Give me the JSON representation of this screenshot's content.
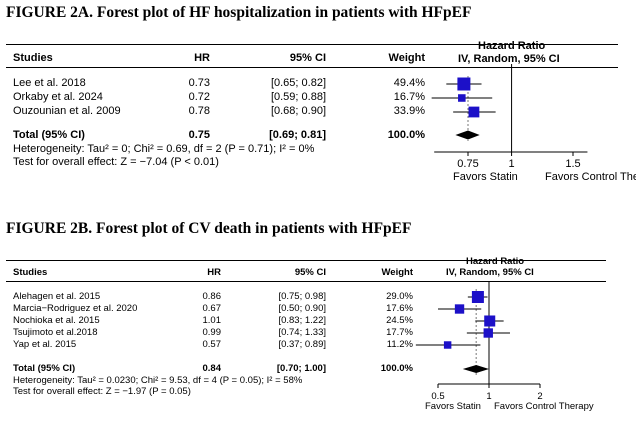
{
  "chart_data": [
    {
      "type": "forest",
      "title": "FIGURE 2A. Forest plot of  HF hospitalization in patients with HFpEF",
      "columns": {
        "studies": "Studies",
        "hr": "HR",
        "ci": "95% CI",
        "weight": "Weight"
      },
      "effect_header": [
        "Hazard Ratio",
        "IV, Random, 95% CI"
      ],
      "studies": [
        {
          "name": "Lee et al. 2018",
          "hr": "0.73",
          "ci": "[0.65; 0.82]",
          "weight": "49.4%",
          "est": 0.73,
          "lo": 0.65,
          "hi": 0.82,
          "w": 49.4
        },
        {
          "name": "Orkaby et al. 2024",
          "hr": "0.72",
          "ci": "[0.59; 0.88]",
          "weight": "16.7%",
          "est": 0.72,
          "lo": 0.59,
          "hi": 0.88,
          "w": 16.7
        },
        {
          "name": "Ouzounian et al. 2009",
          "hr": "0.78",
          "ci": "[0.68; 0.90]",
          "weight": "33.9%",
          "est": 0.78,
          "lo": 0.68,
          "hi": 0.9,
          "w": 33.9
        }
      ],
      "total": {
        "label": "Total (95% CI)",
        "hr": "0.75",
        "ci": "[0.69; 0.81]",
        "weight": "100.0%",
        "est": 0.75,
        "lo": 0.69,
        "hi": 0.81
      },
      "heterogeneity": "Heterogeneity: Tau² = 0; Chi² = 0.69, df = 2 (P = 0.71); I² = 0%",
      "overall_test": "Test for overall effect: Z = −7.04 (P < 0.01)",
      "x_ticks": [
        {
          "v": 0.75,
          "label": "0.75"
        },
        {
          "v": 1,
          "label": "1"
        },
        {
          "v": 1.5,
          "label": "1.5"
        }
      ],
      "xlim": [
        0.6,
        1.65
      ],
      "scale": "log",
      "favors_left": "Favors Statin",
      "favors_right": "Favors Control Therapy"
    },
    {
      "type": "forest",
      "title": "FIGURE 2B. Forest plot of CV death in patients with HFpEF",
      "columns": {
        "studies": "Studies",
        "hr": "HR",
        "ci": "95% CI",
        "weight": "Weight"
      },
      "effect_header": [
        "Hazard Ratio",
        "IV, Random, 95% CI"
      ],
      "studies": [
        {
          "name": "Alehagen et al. 2015",
          "hr": "0.86",
          "ci": "[0.75; 0.98]",
          "weight": "29.0%",
          "est": 0.86,
          "lo": 0.75,
          "hi": 0.98,
          "w": 29.0
        },
        {
          "name": "Marcia−Rodriguez et al. 2020",
          "hr": "0.67",
          "ci": "[0.50; 0.90]",
          "weight": "17.6%",
          "est": 0.67,
          "lo": 0.5,
          "hi": 0.9,
          "w": 17.6
        },
        {
          "name": "Nochioka et al. 2015",
          "hr": "1.01",
          "ci": "[0.83; 1.22]",
          "weight": "24.5%",
          "est": 1.01,
          "lo": 0.83,
          "hi": 1.22,
          "w": 24.5
        },
        {
          "name": "Tsujimoto et al.2018",
          "hr": "0.99",
          "ci": "[0.74; 1.33]",
          "weight": "17.7%",
          "est": 0.99,
          "lo": 0.74,
          "hi": 1.33,
          "w": 17.7
        },
        {
          "name": "Yap et al. 2015",
          "hr": "0.57",
          "ci": "[0.37; 0.89]",
          "weight": "11.2%",
          "est": 0.57,
          "lo": 0.37,
          "hi": 0.89,
          "w": 11.2
        }
      ],
      "total": {
        "label": "Total (95% CI)",
        "hr": "0.84",
        "ci": "[0.70; 1.00]",
        "weight": "100.0%",
        "est": 0.84,
        "lo": 0.7,
        "hi": 1.0
      },
      "heterogeneity": "Heterogeneity: Tau² = 0.0230; Chi² = 9.53, df = 4 (P = 0.05); I² = 58%",
      "overall_test": "Test for overall effect: Z = −1.97 (P = 0.05)",
      "x_ticks": [
        {
          "v": 0.5,
          "label": "0.5"
        },
        {
          "v": 1,
          "label": "1"
        },
        {
          "v": 2,
          "label": "2"
        }
      ],
      "xlim": [
        0.5,
        2
      ],
      "scale": "log",
      "favors_left": "Favors Statin",
      "favors_right": "Favors Control Therapy"
    }
  ],
  "colors": {
    "marker": "#1c10c8",
    "ink": "#000000"
  }
}
